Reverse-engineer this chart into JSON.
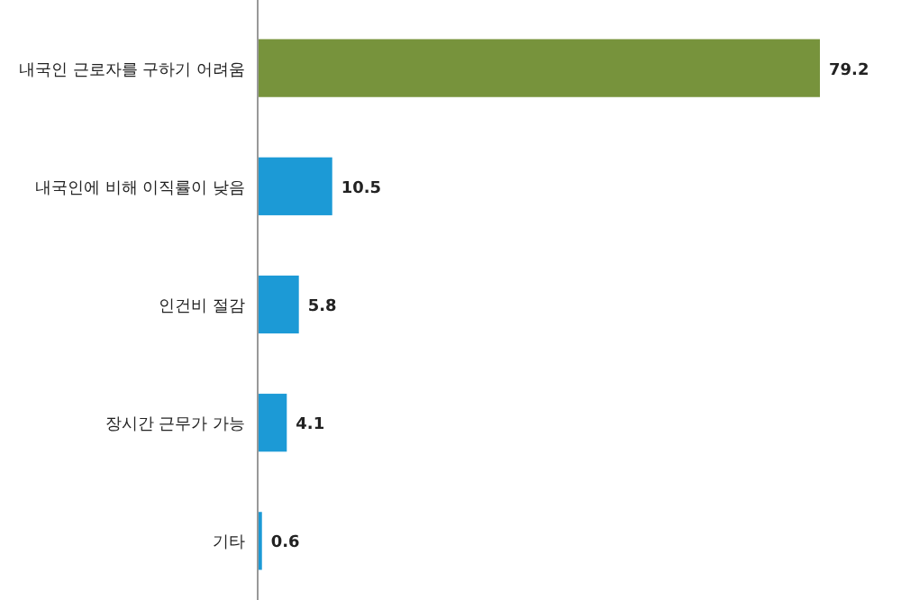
{
  "chart_data": {
    "type": "bar",
    "orientation": "horizontal",
    "data_labels": true,
    "categories": [
      "내국인 근로자를 구하기 어려움",
      "내국인에 비해 이직률이 낮음",
      "인건비 절감",
      "장시간 근무가 가능",
      "기타"
    ],
    "values": [
      79.2,
      10.5,
      5.8,
      4.1,
      0.6
    ],
    "colors": [
      "#77933c",
      "#1c9ad6",
      "#1c9ad6",
      "#1c9ad6",
      "#1c9ad6"
    ]
  }
}
